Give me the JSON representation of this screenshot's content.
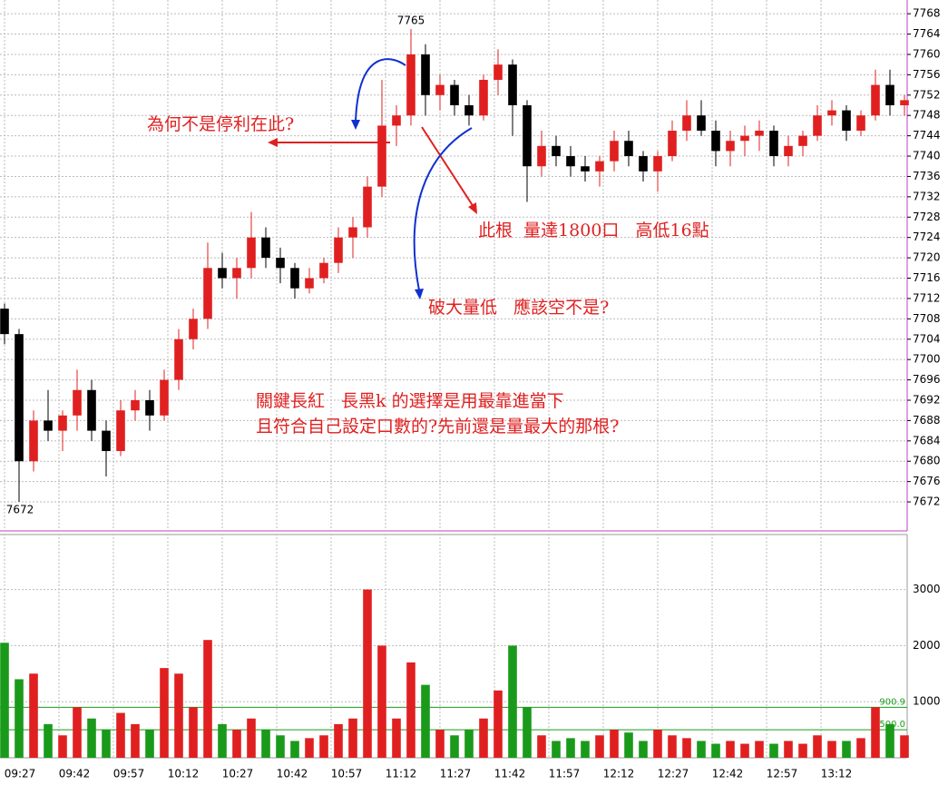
{
  "chart_data": {
    "type": "candlestick",
    "x": [
      0,
      4,
      8,
      12,
      16,
      20,
      24,
      28,
      32,
      36,
      40,
      44,
      48,
      52,
      56,
      60,
      64,
      68,
      72,
      76,
      80,
      84,
      88,
      92,
      96,
      100,
      104,
      108,
      112,
      116,
      120,
      124,
      128,
      132,
      136,
      140,
      144,
      148,
      152,
      156,
      160,
      164,
      168,
      172,
      176,
      180,
      184,
      188,
      192,
      196,
      200,
      204,
      208,
      212,
      216,
      220,
      224,
      228,
      232,
      236,
      240,
      244,
      248
    ],
    "open": [
      7710,
      7705,
      7680,
      7688,
      7686,
      7689,
      7694,
      7686,
      7682,
      7690,
      7692,
      7689,
      7696,
      7704,
      7708,
      7718,
      7716,
      7718,
      7724,
      7720,
      7718,
      7714,
      7716,
      7719,
      7724,
      7726,
      7734,
      7746,
      7748,
      7760,
      7752,
      7754,
      7750,
      7748,
      7755,
      7758,
      7750,
      7738,
      7742,
      7740,
      7738,
      7737,
      7739,
      7743,
      7740,
      7737,
      7740,
      7745,
      7748,
      7745,
      7741,
      7743,
      7744,
      7745,
      7740,
      7742,
      7744,
      7748,
      7749,
      7745,
      7748,
      7754,
      7750
    ],
    "high": [
      7711,
      7706,
      7690,
      7694,
      7690,
      7698,
      7696,
      7688,
      7692,
      7694,
      7694,
      7698,
      7706,
      7710,
      7723,
      7721,
      7720,
      7729,
      7726,
      7722,
      7719,
      7718,
      7720,
      7726,
      7728,
      7736,
      7755,
      7750,
      7765,
      7762,
      7756,
      7755,
      7752,
      7756,
      7761,
      7759,
      7751,
      7745,
      7744,
      7742,
      7740,
      7740,
      7745,
      7745,
      7741,
      7741,
      7747,
      7751,
      7751,
      7747,
      7745,
      7746,
      7747,
      7746,
      7744,
      7745,
      7750,
      7751,
      7750,
      7749,
      7757,
      7757,
      7752
    ],
    "low": [
      7703,
      7672,
      7678,
      7684,
      7682,
      7686,
      7684,
      7677,
      7681,
      7688,
      7686,
      7688,
      7694,
      7702,
      7706,
      7714,
      7712,
      7716,
      7718,
      7715,
      7712,
      7713,
      7715,
      7717,
      7720,
      7724,
      7732,
      7742,
      7746,
      7748,
      7749,
      7748,
      7746,
      7747,
      7752,
      7744,
      7731,
      7736,
      7738,
      7736,
      7735,
      7734,
      7737,
      7738,
      7735,
      7733,
      7739,
      7743,
      7744,
      7738,
      7738,
      7740,
      7741,
      7738,
      7738,
      7740,
      7743,
      7746,
      7743,
      7744,
      7747,
      7748,
      7748
    ],
    "close": [
      7705,
      7680,
      7688,
      7686,
      7689,
      7694,
      7686,
      7682,
      7690,
      7692,
      7689,
      7696,
      7704,
      7708,
      7718,
      7716,
      7718,
      7724,
      7720,
      7718,
      7714,
      7716,
      7719,
      7724,
      7726,
      7734,
      7746,
      7748,
      7760,
      7752,
      7754,
      7750,
      7748,
      7755,
      7758,
      7750,
      7738,
      7742,
      7740,
      7738,
      7737,
      7739,
      7743,
      7740,
      7737,
      7740,
      7745,
      7748,
      7745,
      7741,
      7743,
      7744,
      7745,
      7740,
      7742,
      7744,
      7748,
      7749,
      7745,
      7748,
      7754,
      7750,
      7751
    ],
    "volume": [
      2050,
      1400,
      1500,
      600,
      400,
      900,
      700,
      500,
      800,
      600,
      500,
      1600,
      1500,
      900,
      2100,
      600,
      500,
      700,
      500,
      400,
      300,
      350,
      400,
      600,
      700,
      3000,
      2000,
      700,
      1700,
      1300,
      500,
      400,
      500,
      700,
      1200,
      2000,
      900,
      400,
      300,
      350,
      300,
      400,
      500,
      450,
      300,
      500,
      400,
      350,
      300,
      250,
      300,
      250,
      300,
      250,
      300,
      250,
      400,
      300,
      300,
      350,
      900,
      600,
      400
    ],
    "xlim": [
      -1.25,
      248.75
    ],
    "xticks": [
      {
        "value": 0,
        "label": "09:27"
      },
      {
        "value": 15,
        "label": "09:42"
      },
      {
        "value": 30,
        "label": "09:57"
      },
      {
        "value": 45,
        "label": "10:12"
      },
      {
        "value": 60,
        "label": "10:27"
      },
      {
        "value": 75,
        "label": "10:42"
      },
      {
        "value": 90,
        "label": "10:57"
      },
      {
        "value": 105,
        "label": "11:12"
      },
      {
        "value": 120,
        "label": "11:27"
      },
      {
        "value": 135,
        "label": "11:42"
      },
      {
        "value": 150,
        "label": "11:57"
      },
      {
        "value": 165,
        "label": "12:12"
      },
      {
        "value": 180,
        "label": "12:27"
      },
      {
        "value": 195,
        "label": "12:42"
      },
      {
        "value": 210,
        "label": "12:57"
      },
      {
        "value": 225,
        "label": "13:12"
      }
    ],
    "ylim": [
      7666.3,
      7770.7
    ],
    "yticks": [
      7672,
      7676,
      7680,
      7684,
      7688,
      7692,
      7696,
      7700,
      7704,
      7708,
      7712,
      7716,
      7720,
      7724,
      7728,
      7732,
      7736,
      7740,
      7744,
      7748,
      7752,
      7756,
      7760,
      7764,
      7768
    ],
    "y2lim": [
      0,
      3980
    ],
    "y2ticks": [
      1000,
      2000,
      3000
    ],
    "reference_lines": [
      900.9,
      {
        "value": 500,
        "label": "500.0"
      }
    ],
    "extreme_labels": [
      7765,
      7672
    ],
    "up_color": "#e02020",
    "down_color": "#000000",
    "volume_up_color": "#e02020",
    "volume_down_color": "#1a9a1a",
    "annotations": [
      "為何不是停利在此?",
      "此根  量達1800口   高低16點",
      "破大量低   應該空不是?",
      "關鍵長紅   長黑k 的選擇是用最靠進當下",
      "且符合自己設定口數的?先前還是量最大的那根?"
    ]
  }
}
